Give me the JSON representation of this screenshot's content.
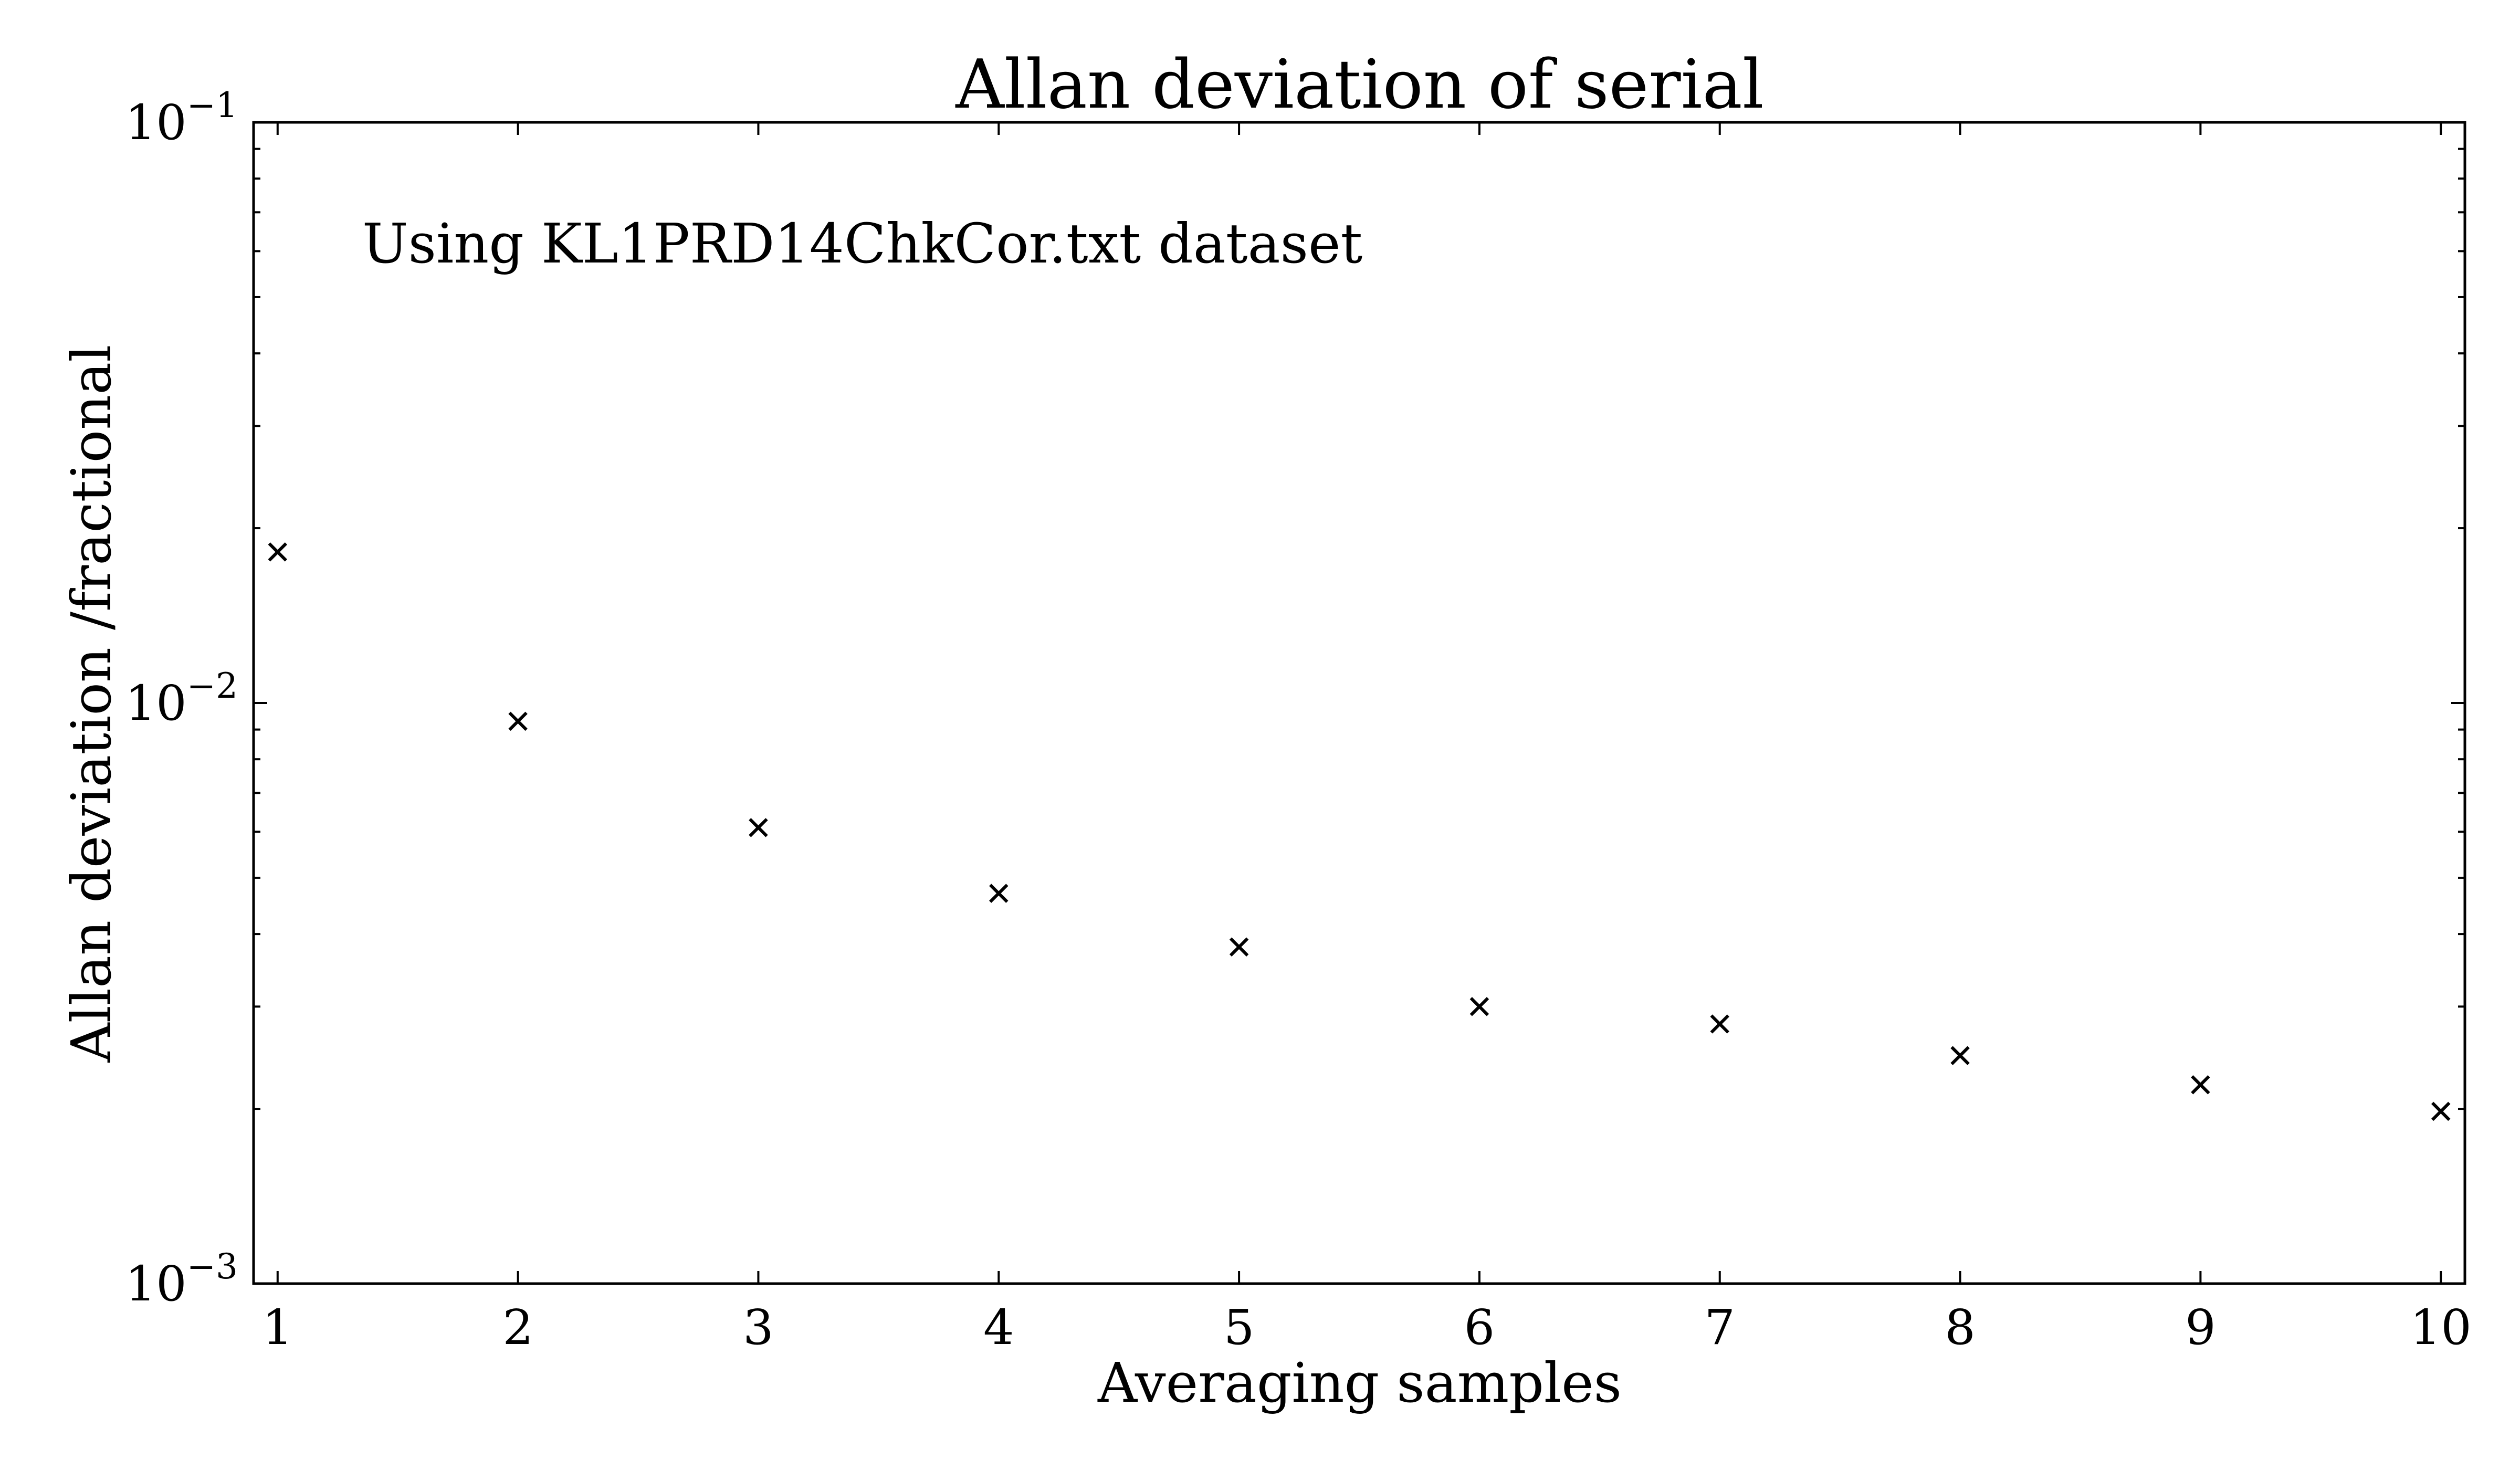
{
  "chart_data": {
    "type": "scatter",
    "title": "Allan deviation of serial",
    "xlabel": "Averaging samples",
    "ylabel": "Allan deviation /fractional",
    "annotation": "Using KL1PRD14ChkCor.txt dataset",
    "x_scale": "linear",
    "y_scale": "log",
    "xlim": [
      0.9,
      10.1
    ],
    "ylim": [
      0.001,
      0.1
    ],
    "x_ticks": [
      {
        "value": 1,
        "label": "1"
      },
      {
        "value": 2,
        "label": "2"
      },
      {
        "value": 3,
        "label": "3"
      },
      {
        "value": 4,
        "label": "4"
      },
      {
        "value": 5,
        "label": "5"
      },
      {
        "value": 6,
        "label": "6"
      },
      {
        "value": 7,
        "label": "7"
      },
      {
        "value": 8,
        "label": "8"
      },
      {
        "value": 9,
        "label": "9"
      },
      {
        "value": 10,
        "label": "10"
      }
    ],
    "y_ticks": [
      {
        "value": 0.1,
        "base": "10",
        "exp": "−1"
      },
      {
        "value": 0.01,
        "base": "10",
        "exp": "−2"
      },
      {
        "value": 0.001,
        "base": "10",
        "exp": "−3"
      }
    ],
    "marker": "x",
    "marker_color": "#000000",
    "grid": false,
    "series": [
      {
        "x": [
          1,
          2,
          3,
          4,
          5,
          6,
          7,
          8,
          9,
          10
        ],
        "y": [
          0.0182,
          0.0093,
          0.0061,
          0.0047,
          0.0038,
          0.003,
          0.0028,
          0.00247,
          0.0022,
          0.00198
        ]
      }
    ]
  }
}
